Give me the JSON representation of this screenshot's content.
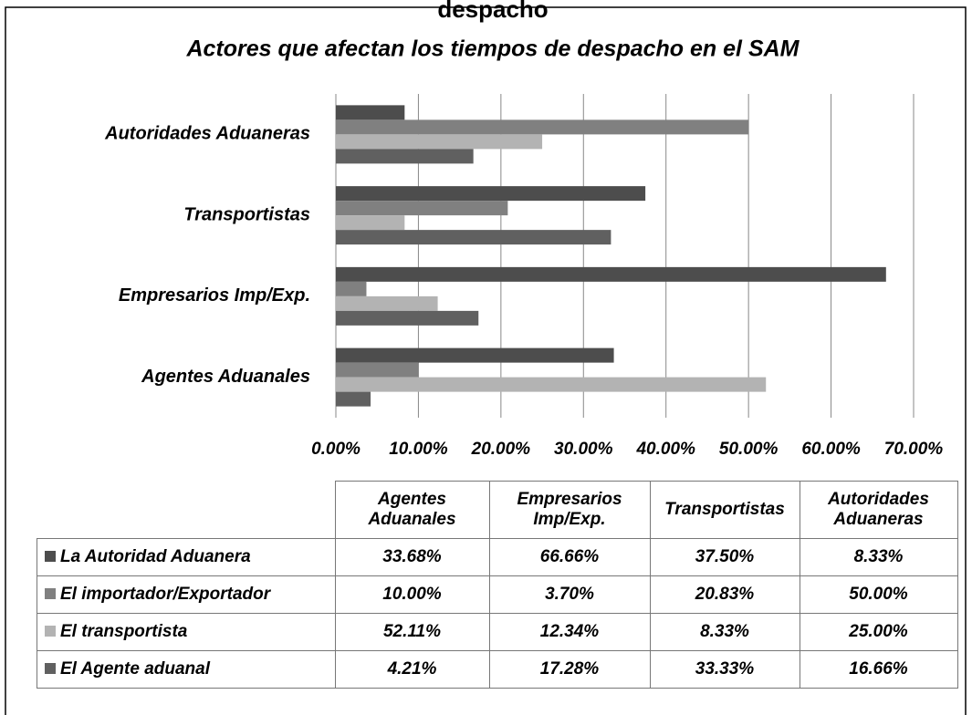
{
  "header": "despacho",
  "chart_data": {
    "type": "hbar",
    "title": "Actores que afectan los tiempos de despacho en el SAM",
    "categories": [
      "Agentes Aduanales",
      "Empresarios Imp/Exp.",
      "Transportistas",
      "Autoridades Aduaneras"
    ],
    "series": [
      {
        "name": "La Autoridad Aduanera",
        "color": "#4d4d4d",
        "values": [
          33.68,
          66.66,
          37.5,
          8.33
        ],
        "value_labels": [
          "33.68%",
          "66.66%",
          "37.50%",
          "8.33%"
        ]
      },
      {
        "name": "El importador/Exportador",
        "color": "#808080",
        "values": [
          10.0,
          3.7,
          20.83,
          50.0
        ],
        "value_labels": [
          "10.00%",
          "3.70%",
          "20.83%",
          "50.00%"
        ]
      },
      {
        "name": "El transportista",
        "color": "#b3b3b3",
        "values": [
          52.11,
          12.34,
          8.33,
          25.0
        ],
        "value_labels": [
          "52.11%",
          "12.34%",
          "8.33%",
          "25.00%"
        ]
      },
      {
        "name": "El Agente aduanal",
        "color": "#606060",
        "values": [
          4.21,
          17.28,
          33.33,
          16.66
        ],
        "value_labels": [
          "4.21%",
          "17.28%",
          "33.33%",
          "16.66%"
        ]
      }
    ],
    "xlim": [
      0,
      70
    ],
    "xticks": [
      {
        "value": 0,
        "label": "0.00%"
      },
      {
        "value": 10,
        "label": "10.00%"
      },
      {
        "value": 20,
        "label": "20.00%"
      },
      {
        "value": 30,
        "label": "30.00%"
      },
      {
        "value": 40,
        "label": "40.00%"
      },
      {
        "value": 50,
        "label": "50.00%"
      },
      {
        "value": 60,
        "label": "60.00%"
      },
      {
        "value": 70,
        "label": "70.00%"
      }
    ],
    "grid": true
  }
}
